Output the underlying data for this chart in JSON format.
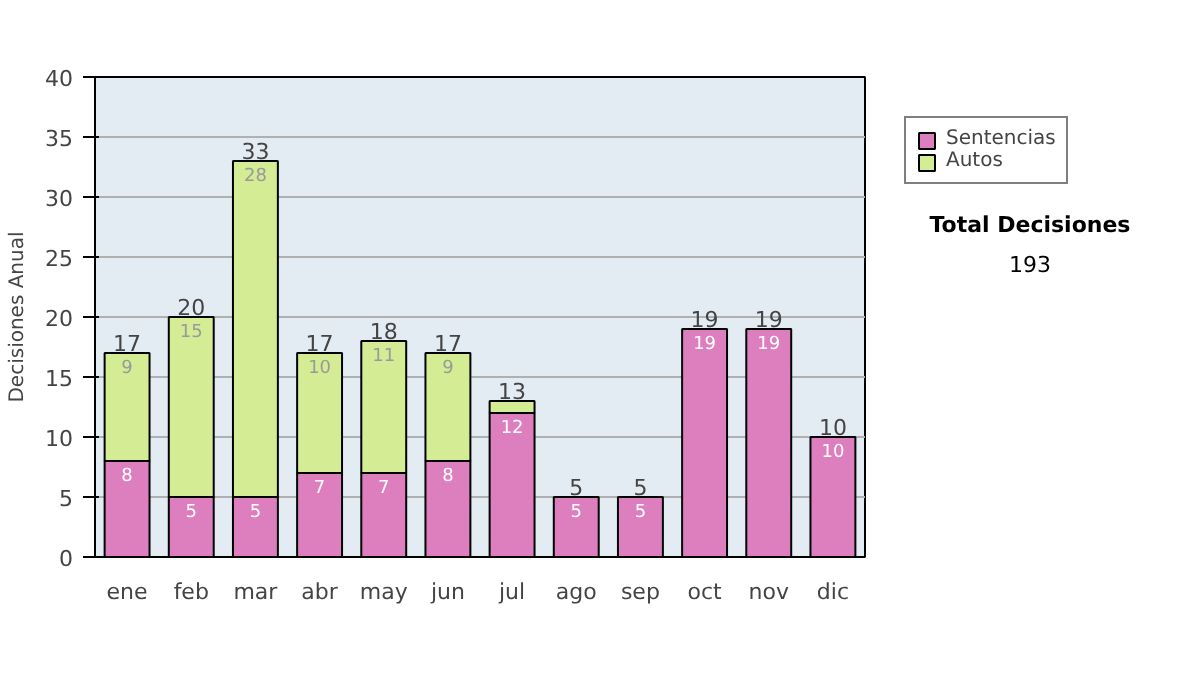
{
  "chart_data": {
    "type": "bar",
    "stacked": true,
    "ylabel": "Decisiones Anual",
    "categories": [
      "ene",
      "feb",
      "mar",
      "abr",
      "may",
      "jun",
      "jul",
      "ago",
      "sep",
      "oct",
      "nov",
      "dic"
    ],
    "series": [
      {
        "name": "Sentencias",
        "color": "#dd7fbf",
        "values": [
          8,
          5,
          5,
          7,
          7,
          8,
          12,
          5,
          5,
          19,
          19,
          10
        ],
        "value_labels": [
          "8",
          "5",
          "5",
          "7",
          "7",
          "8",
          "12",
          "5",
          "5",
          "19",
          "19",
          "10"
        ]
      },
      {
        "name": "Autos",
        "color": "#d4ec94",
        "values": [
          9,
          15,
          28,
          10,
          11,
          9,
          1,
          null,
          null,
          null,
          null,
          null
        ],
        "value_labels": [
          "9",
          "15",
          "28",
          "10",
          "11",
          "9",
          null,
          null,
          null,
          null,
          null,
          null
        ]
      }
    ],
    "totals": [
      "17",
      "20",
      "33",
      "17",
      "18",
      "17",
      "13",
      "5",
      "5",
      "19",
      "19",
      "10"
    ],
    "ylim": [
      0,
      40
    ],
    "yticks": [
      0,
      5,
      10,
      15,
      20,
      25,
      30,
      35,
      40
    ],
    "grid": "y",
    "legend": "right",
    "annotations": [
      "Total Decisiones",
      "193"
    ]
  }
}
